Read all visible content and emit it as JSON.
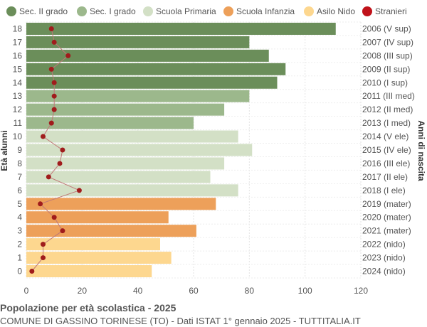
{
  "title": "Popolazione per età scolastica - 2025",
  "subtitle": "COMUNE DI GASSINO TORINESE (TO) - Dati ISTAT 1° gennaio 2025 - TUTTITALIA.IT",
  "chart_data": {
    "type": "bar",
    "orientation": "horizontal",
    "title": "Popolazione per età scolastica - 2025",
    "subtitle": "COMUNE DI GASSINO TORINESE (TO) - Dati ISTAT 1° gennaio 2025 - TUTTITALIA.IT",
    "ylabel_left": "Età alunni",
    "ylabel_right": "Anni di nascita",
    "xlim": [
      0,
      120
    ],
    "xticks": [
      0,
      20,
      40,
      60,
      80,
      100,
      120
    ],
    "grid": true,
    "legend_position": "top",
    "legend": [
      {
        "name": "Sec. II grado",
        "color": "#6b8e5a"
      },
      {
        "name": "Sec. I grado",
        "color": "#9cb88c"
      },
      {
        "name": "Scuola Primaria",
        "color": "#d3e0c6"
      },
      {
        "name": "Scuola Infanzia",
        "color": "#eda05a"
      },
      {
        "name": "Asilo Nido",
        "color": "#fdd78f"
      },
      {
        "name": "Stranieri",
        "color": "#c0121a"
      }
    ],
    "rows": [
      {
        "age": "18",
        "year": "2006 (V sup)",
        "value": 111,
        "stranieri": 9,
        "group": 0
      },
      {
        "age": "17",
        "year": "2007 (IV sup)",
        "value": 80,
        "stranieri": 10,
        "group": 0
      },
      {
        "age": "16",
        "year": "2008 (III sup)",
        "value": 87,
        "stranieri": 15,
        "group": 0
      },
      {
        "age": "15",
        "year": "2009 (II sup)",
        "value": 93,
        "stranieri": 9,
        "group": 0
      },
      {
        "age": "14",
        "year": "2010 (I sup)",
        "value": 90,
        "stranieri": 10,
        "group": 0
      },
      {
        "age": "13",
        "year": "2011 (III med)",
        "value": 80,
        "stranieri": 10,
        "group": 1
      },
      {
        "age": "12",
        "year": "2012 (II med)",
        "value": 71,
        "stranieri": 10,
        "group": 1
      },
      {
        "age": "11",
        "year": "2013 (I med)",
        "value": 60,
        "stranieri": 9,
        "group": 1
      },
      {
        "age": "10",
        "year": "2014 (V ele)",
        "value": 76,
        "stranieri": 6,
        "group": 2
      },
      {
        "age": "9",
        "year": "2015 (IV ele)",
        "value": 81,
        "stranieri": 13,
        "group": 2
      },
      {
        "age": "8",
        "year": "2016 (III ele)",
        "value": 71,
        "stranieri": 12,
        "group": 2
      },
      {
        "age": "7",
        "year": "2017 (II ele)",
        "value": 66,
        "stranieri": 8,
        "group": 2
      },
      {
        "age": "6",
        "year": "2018 (I ele)",
        "value": 76,
        "stranieri": 19,
        "group": 2
      },
      {
        "age": "5",
        "year": "2019 (mater)",
        "value": 68,
        "stranieri": 5,
        "group": 3
      },
      {
        "age": "4",
        "year": "2020 (mater)",
        "value": 51,
        "stranieri": 10,
        "group": 3
      },
      {
        "age": "3",
        "year": "2021 (mater)",
        "value": 61,
        "stranieri": 13,
        "group": 3
      },
      {
        "age": "2",
        "year": "2022 (nido)",
        "value": 48,
        "stranieri": 6,
        "group": 4
      },
      {
        "age": "1",
        "year": "2023 (nido)",
        "value": 52,
        "stranieri": 6,
        "group": 4
      },
      {
        "age": "0",
        "year": "2024 (nido)",
        "value": 45,
        "stranieri": 2,
        "group": 4
      }
    ]
  }
}
